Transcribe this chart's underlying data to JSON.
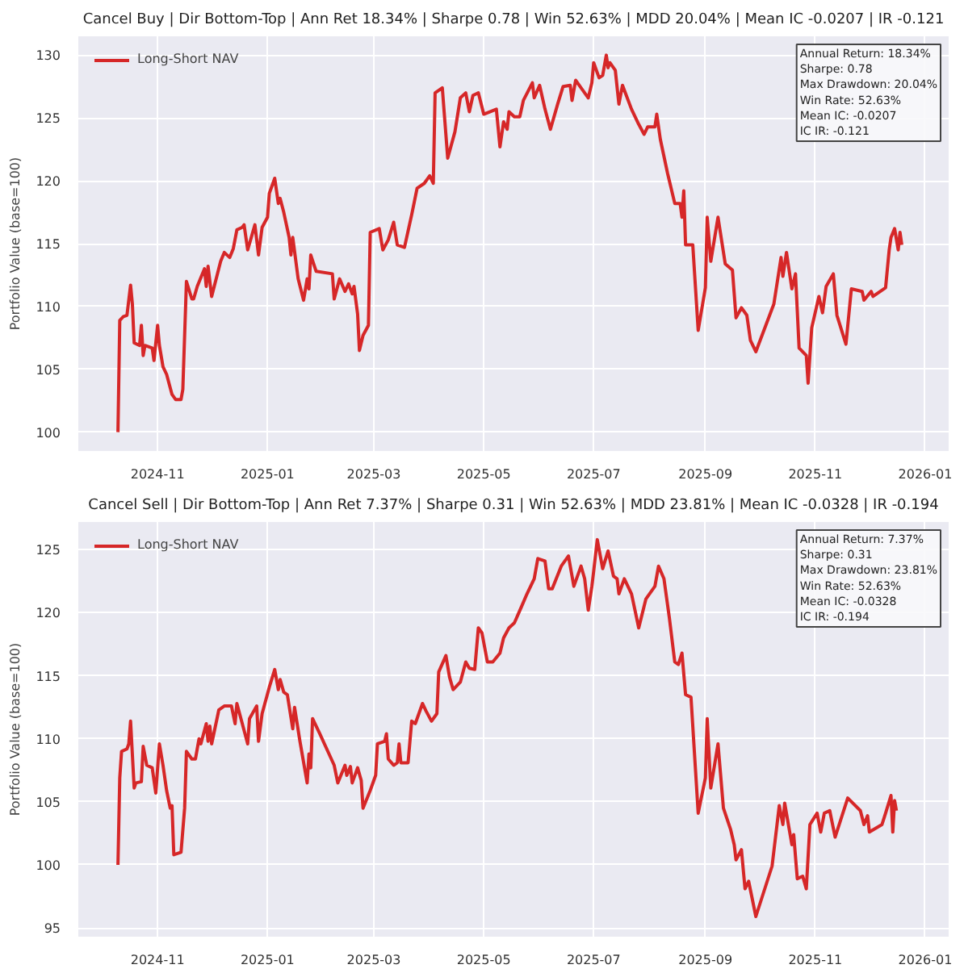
{
  "chart_data": [
    {
      "type": "line",
      "title": "Cancel Buy | Dir Bottom-Top | Ann Ret 18.34% | Sharpe 0.78 | Win 52.63% | MDD 20.04% | Mean IC -0.0207 | IR -0.121",
      "ylabel": "Portfolio Value (base=100)",
      "x": [
        "2024-10-10",
        "2024-10-11",
        "2024-10-13",
        "2024-10-15",
        "2024-10-17",
        "2024-10-18",
        "2024-10-19",
        "2024-10-22",
        "2024-10-23",
        "2024-10-24",
        "2024-10-25",
        "2024-10-29",
        "2024-10-30",
        "2024-11-01",
        "2024-11-02",
        "2024-11-04",
        "2024-11-06",
        "2024-11-09",
        "2024-11-11",
        "2024-11-14",
        "2024-11-15",
        "2024-11-17",
        "2024-11-20",
        "2024-11-21",
        "2024-11-23",
        "2024-11-27",
        "2024-11-28",
        "2024-11-29",
        "2024-12-01",
        "2024-12-06",
        "2024-12-08",
        "2024-12-11",
        "2024-12-13",
        "2024-12-15",
        "2024-12-18",
        "2024-12-19",
        "2024-12-21",
        "2024-12-25",
        "2024-12-27",
        "2024-12-29",
        "2025-01-01",
        "2025-01-02",
        "2025-01-05",
        "2025-01-07",
        "2025-01-08",
        "2025-01-10",
        "2025-01-13",
        "2025-01-14",
        "2025-01-15",
        "2025-01-18",
        "2025-01-21",
        "2025-01-23",
        "2025-01-24",
        "2025-01-25",
        "2025-01-28",
        "2025-02-06",
        "2025-02-07",
        "2025-02-10",
        "2025-02-13",
        "2025-02-15",
        "2025-02-17",
        "2025-02-18",
        "2025-02-20",
        "2025-02-21",
        "2025-02-23",
        "2025-02-26",
        "2025-02-27",
        "2025-03-04",
        "2025-03-06",
        "2025-03-09",
        "2025-03-12",
        "2025-03-14",
        "2025-03-18",
        "2025-03-22",
        "2025-03-25",
        "2025-03-29",
        "2025-04-01",
        "2025-04-03",
        "2025-04-04",
        "2025-04-08",
        "2025-04-11",
        "2025-04-15",
        "2025-04-18",
        "2025-04-21",
        "2025-04-23",
        "2025-04-25",
        "2025-04-28",
        "2025-05-01",
        "2025-05-08",
        "2025-05-10",
        "2025-05-12",
        "2025-05-14",
        "2025-05-15",
        "2025-05-18",
        "2025-05-21",
        "2025-05-23",
        "2025-05-28",
        "2025-05-29",
        "2025-06-01",
        "2025-06-04",
        "2025-06-07",
        "2025-06-11",
        "2025-06-14",
        "2025-06-18",
        "2025-06-19",
        "2025-06-21",
        "2025-06-24",
        "2025-06-28",
        "2025-06-30",
        "2025-07-01",
        "2025-07-04",
        "2025-07-06",
        "2025-07-08",
        "2025-07-09",
        "2025-07-10",
        "2025-07-13",
        "2025-07-15",
        "2025-07-17",
        "2025-07-22",
        "2025-07-26",
        "2025-07-29",
        "2025-07-31",
        "2025-08-04",
        "2025-08-05",
        "2025-08-07",
        "2025-08-11",
        "2025-08-15",
        "2025-08-18",
        "2025-08-19",
        "2025-08-20",
        "2025-08-21",
        "2025-08-25",
        "2025-08-28",
        "2025-09-01",
        "2025-09-02",
        "2025-09-04",
        "2025-09-08",
        "2025-09-12",
        "2025-09-16",
        "2025-09-18",
        "2025-09-21",
        "2025-09-24",
        "2025-09-26",
        "2025-09-29",
        "2025-10-09",
        "2025-10-13",
        "2025-10-14",
        "2025-10-16",
        "2025-10-19",
        "2025-10-21",
        "2025-10-23",
        "2025-10-27",
        "2025-10-28",
        "2025-10-30",
        "2025-11-03",
        "2025-11-05",
        "2025-11-07",
        "2025-11-11",
        "2025-11-13",
        "2025-11-18",
        "2025-11-21",
        "2025-11-27",
        "2025-11-28",
        "2025-12-02",
        "2025-12-03",
        "2025-12-10",
        "2025-12-12",
        "2025-12-13",
        "2025-12-15",
        "2025-12-17",
        "2025-12-18",
        "2025-12-19"
      ],
      "series": [
        {
          "name": "Long-Short NAV",
          "color": "#d62728",
          "values": [
            100,
            108.9,
            109.2,
            109.3,
            111.7,
            110.2,
            107.1,
            106.9,
            108.5,
            106.1,
            106.9,
            106.7,
            105.7,
            108.5,
            106.9,
            105.2,
            104.6,
            103.0,
            102.6,
            102.6,
            103.4,
            112.0,
            110.6,
            110.6,
            111.6,
            113.0,
            111.6,
            113.2,
            110.8,
            113.6,
            114.3,
            113.9,
            114.6,
            116.1,
            116.3,
            116.5,
            114.5,
            116.5,
            114.1,
            116.3,
            117.1,
            119.0,
            120.2,
            118.2,
            118.6,
            117.5,
            115.5,
            114.1,
            115.5,
            112.2,
            110.5,
            112.2,
            111.4,
            114.1,
            112.8,
            112.6,
            110.6,
            112.2,
            111.2,
            111.8,
            111.0,
            111.6,
            109.4,
            106.5,
            107.7,
            108.5,
            115.9,
            116.2,
            114.5,
            115.3,
            116.7,
            114.9,
            114.7,
            117.3,
            119.4,
            119.8,
            120.4,
            119.8,
            127.0,
            127.4,
            121.8,
            123.9,
            126.6,
            127.0,
            125.5,
            126.8,
            127.0,
            125.3,
            125.7,
            122.7,
            124.7,
            124.1,
            125.5,
            125.1,
            125.1,
            126.4,
            127.8,
            126.6,
            127.6,
            125.7,
            124.1,
            126.1,
            127.5,
            127.6,
            126.4,
            128.0,
            127.4,
            126.6,
            127.8,
            129.4,
            128.2,
            128.4,
            130.0,
            129.0,
            129.4,
            128.8,
            126.1,
            127.6,
            125.7,
            124.5,
            123.7,
            124.3,
            124.3,
            125.3,
            123.3,
            120.6,
            118.2,
            118.2,
            117.1,
            119.2,
            114.9,
            114.9,
            108.1,
            111.5,
            117.1,
            113.6,
            117.1,
            113.4,
            112.9,
            109.1,
            109.9,
            109.3,
            107.3,
            106.4,
            110.2,
            113.9,
            112.4,
            114.3,
            111.4,
            112.6,
            106.7,
            106.1,
            103.9,
            108.3,
            110.8,
            109.5,
            111.6,
            112.6,
            109.3,
            107.0,
            111.4,
            111.2,
            110.5,
            111.2,
            110.8,
            111.5,
            114.5,
            115.5,
            116.2,
            114.5,
            115.9,
            114.9
          ]
        }
      ],
      "xlim": [
        "2024-09-18",
        "2026-01-14"
      ],
      "xticks": [
        {
          "value": "2024-11-01",
          "label": "2024-11"
        },
        {
          "value": "2025-01-01",
          "label": "2025-01"
        },
        {
          "value": "2025-03-01",
          "label": "2025-03"
        },
        {
          "value": "2025-05-01",
          "label": "2025-05"
        },
        {
          "value": "2025-07-01",
          "label": "2025-07"
        },
        {
          "value": "2025-09-01",
          "label": "2025-09"
        },
        {
          "value": "2025-11-01",
          "label": "2025-11"
        },
        {
          "value": "2026-01-01",
          "label": "2026-01"
        }
      ],
      "ylim": [
        98.5,
        131.5
      ],
      "yticks": [
        100,
        105,
        110,
        115,
        120,
        125,
        130
      ],
      "annotations": [
        "Annual Return: 18.34%",
        "Sharpe: 0.78",
        "Max Drawdown: 20.04%",
        "Win Rate: 52.63%",
        "Mean IC: -0.0207",
        "IC IR: -0.121"
      ],
      "grid": true,
      "legend": "top left",
      "line_style": "solid"
    },
    {
      "type": "line",
      "title": "Cancel Sell | Dir Bottom-Top | Ann Ret 7.37% | Sharpe 0.31 | Win 52.63% | MDD 23.81% | Mean IC -0.0328 | IR -0.194",
      "ylabel": "Portfolio Value (base=100)",
      "x": [
        "2024-10-10",
        "2024-10-11",
        "2024-10-12",
        "2024-10-15",
        "2024-10-16",
        "2024-10-17",
        "2024-10-19",
        "2024-10-20",
        "2024-10-23",
        "2024-10-24",
        "2024-10-26",
        "2024-10-29",
        "2024-10-31",
        "2024-11-02",
        "2024-11-04",
        "2024-11-06",
        "2024-11-08",
        "2024-11-09",
        "2024-11-10",
        "2024-11-14",
        "2024-11-16",
        "2024-11-17",
        "2024-11-20",
        "2024-11-22",
        "2024-11-24",
        "2024-11-25",
        "2024-11-28",
        "2024-11-29",
        "2024-11-30",
        "2024-12-01",
        "2024-12-05",
        "2024-12-08",
        "2024-12-12",
        "2024-12-14",
        "2024-12-15",
        "2024-12-21",
        "2024-12-22",
        "2024-12-26",
        "2024-12-27",
        "2024-12-29",
        "2025-01-02",
        "2025-01-05",
        "2025-01-07",
        "2025-01-08",
        "2025-01-10",
        "2025-01-12",
        "2025-01-15",
        "2025-01-16",
        "2025-01-19",
        "2025-01-23",
        "2025-01-24",
        "2025-01-25",
        "2025-01-26",
        "2025-01-30",
        "2025-02-07",
        "2025-02-09",
        "2025-02-13",
        "2025-02-14",
        "2025-02-16",
        "2025-02-17",
        "2025-02-20",
        "2025-02-22",
        "2025-02-23",
        "2025-02-27",
        "2025-03-02",
        "2025-03-03",
        "2025-03-07",
        "2025-03-08",
        "2025-03-09",
        "2025-03-12",
        "2025-03-14",
        "2025-03-15",
        "2025-03-16",
        "2025-03-20",
        "2025-03-22",
        "2025-03-24",
        "2025-03-28",
        "2025-03-30",
        "2025-04-02",
        "2025-04-05",
        "2025-04-06",
        "2025-04-10",
        "2025-04-12",
        "2025-04-14",
        "2025-04-18",
        "2025-04-21",
        "2025-04-23",
        "2025-04-26",
        "2025-04-28",
        "2025-04-30",
        "2025-05-03",
        "2025-05-06",
        "2025-05-10",
        "2025-05-12",
        "2025-05-15",
        "2025-05-18",
        "2025-05-22",
        "2025-05-25",
        "2025-05-29",
        "2025-05-31",
        "2025-06-04",
        "2025-06-06",
        "2025-06-08",
        "2025-06-13",
        "2025-06-17",
        "2025-06-20",
        "2025-06-24",
        "2025-06-26",
        "2025-06-28",
        "2025-06-30",
        "2025-07-01",
        "2025-07-03",
        "2025-07-06",
        "2025-07-09",
        "2025-07-12",
        "2025-07-14",
        "2025-07-15",
        "2025-07-18",
        "2025-07-22",
        "2025-07-26",
        "2025-07-30",
        "2025-08-04",
        "2025-08-06",
        "2025-08-09",
        "2025-08-12",
        "2025-08-15",
        "2025-08-17",
        "2025-08-19",
        "2025-08-21",
        "2025-08-24",
        "2025-08-28",
        "2025-09-01",
        "2025-09-02",
        "2025-09-04",
        "2025-09-08",
        "2025-09-11",
        "2025-09-15",
        "2025-09-17",
        "2025-09-18",
        "2025-09-21",
        "2025-09-23",
        "2025-09-25",
        "2025-09-29",
        "2025-10-08",
        "2025-10-12",
        "2025-10-14",
        "2025-10-15",
        "2025-10-19",
        "2025-10-20",
        "2025-10-22",
        "2025-10-25",
        "2025-10-27",
        "2025-10-29",
        "2025-11-02",
        "2025-11-04",
        "2025-11-06",
        "2025-11-09",
        "2025-11-12",
        "2025-11-19",
        "2025-11-26",
        "2025-11-28",
        "2025-11-30",
        "2025-12-01",
        "2025-12-08",
        "2025-12-10",
        "2025-12-13",
        "2025-12-14",
        "2025-12-15",
        "2025-12-16"
      ],
      "series": [
        {
          "name": "Long-Short NAV",
          "color": "#d62728",
          "values": [
            100,
            106.9,
            109.0,
            109.2,
            109.6,
            111.4,
            106.1,
            106.5,
            106.6,
            109.4,
            107.9,
            107.7,
            105.7,
            109.6,
            107.9,
            105.9,
            104.5,
            104.7,
            100.8,
            101.0,
            104.5,
            109.0,
            108.4,
            108.4,
            110.0,
            109.6,
            111.2,
            109.8,
            111.0,
            109.6,
            112.3,
            112.6,
            112.6,
            111.2,
            112.8,
            109.6,
            111.6,
            112.6,
            109.8,
            112.0,
            114.1,
            115.5,
            113.9,
            114.7,
            113.7,
            113.5,
            110.8,
            112.5,
            109.8,
            106.5,
            108.8,
            107.7,
            111.6,
            110.4,
            107.9,
            106.5,
            107.9,
            107.1,
            107.8,
            106.5,
            107.7,
            106.7,
            104.5,
            105.9,
            107.1,
            109.6,
            109.8,
            110.4,
            108.4,
            107.9,
            108.1,
            109.6,
            108.1,
            108.1,
            111.4,
            111.2,
            112.8,
            112.2,
            111.4,
            112.0,
            115.3,
            116.6,
            114.9,
            113.9,
            114.5,
            116.1,
            115.6,
            115.5,
            118.8,
            118.4,
            116.1,
            116.1,
            116.8,
            118.0,
            118.8,
            119.2,
            120.5,
            121.5,
            122.7,
            124.3,
            124.1,
            121.9,
            121.9,
            123.7,
            124.5,
            122.1,
            123.7,
            122.7,
            120.2,
            122.1,
            123.3,
            125.8,
            123.5,
            124.9,
            122.9,
            122.7,
            121.5,
            122.7,
            121.5,
            118.8,
            121.1,
            122.1,
            123.7,
            122.7,
            119.6,
            116.1,
            115.9,
            116.8,
            113.5,
            113.3,
            104.1,
            106.9,
            111.6,
            106.1,
            109.6,
            104.5,
            102.8,
            101.6,
            100.4,
            101.2,
            98.1,
            98.7,
            95.9,
            99.9,
            104.7,
            103.2,
            104.9,
            101.6,
            102.4,
            98.9,
            99.1,
            98.1,
            103.2,
            104.1,
            102.6,
            104.1,
            104.3,
            102.2,
            105.3,
            104.3,
            103.2,
            103.9,
            102.6,
            103.2,
            104.1,
            105.5,
            102.6,
            105.1,
            104.3
          ]
        }
      ],
      "xlim": [
        "2024-09-18",
        "2026-01-14"
      ],
      "xticks": [
        {
          "value": "2024-11-01",
          "label": "2024-11"
        },
        {
          "value": "2025-01-01",
          "label": "2025-01"
        },
        {
          "value": "2025-03-01",
          "label": "2025-03"
        },
        {
          "value": "2025-05-01",
          "label": "2025-05"
        },
        {
          "value": "2025-07-01",
          "label": "2025-07"
        },
        {
          "value": "2025-09-01",
          "label": "2025-09"
        },
        {
          "value": "2025-11-01",
          "label": "2025-11"
        },
        {
          "value": "2026-01-01",
          "label": "2026-01"
        }
      ],
      "ylim": [
        94.3,
        127.2
      ],
      "yticks": [
        95,
        100,
        105,
        110,
        115,
        120,
        125
      ],
      "annotations": [
        "Annual Return: 7.37%",
        "Sharpe: 0.31",
        "Max Drawdown: 23.81%",
        "Win Rate: 52.63%",
        "Mean IC: -0.0328",
        "IC IR: -0.194"
      ],
      "grid": true,
      "legend": "top left",
      "line_style": "solid"
    }
  ]
}
